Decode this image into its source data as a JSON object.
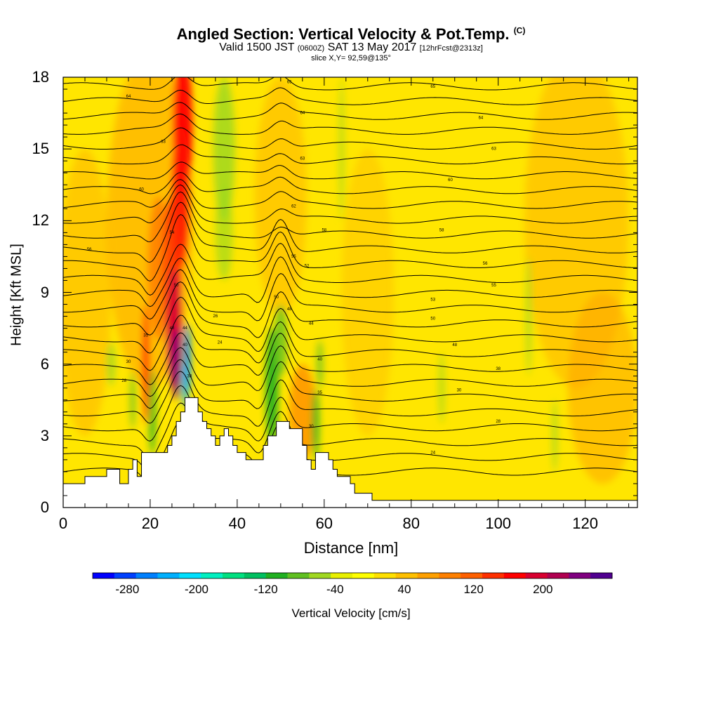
{
  "title": {
    "main": "Angled Section: Vertical Velocity & Pot.Temp.",
    "main_suffix": "(C)",
    "valid_a": "Valid 1500 JST",
    "valid_z": "(0600Z)",
    "valid_b": "SAT 13 May 2017",
    "fcst": "[12hrFcst@2313z]",
    "slice": "slice X,Y= 92,59@135°"
  },
  "chart_data": {
    "type": "heatmap",
    "xlabel": "Distance [nm]",
    "ylabel": "Height [Kft MSL]",
    "xlim": [
      0,
      132
    ],
    "ylim": [
      0,
      18
    ],
    "xticks": [
      0,
      20,
      40,
      60,
      80,
      100,
      120
    ],
    "yticks": [
      0,
      3,
      6,
      9,
      12,
      15,
      18
    ],
    "field_filled": "Vertical Velocity [cm/s]",
    "field_contoured": "Potential Temperature (C)",
    "colorbar": {
      "title": "Vertical Velocity [cm/s]",
      "tick_labels": [
        -280,
        -200,
        -120,
        -40,
        40,
        120,
        200
      ],
      "colors": [
        "#0000ff",
        "#0040ff",
        "#0080ff",
        "#00b0ff",
        "#00e0ff",
        "#00f0c0",
        "#00e080",
        "#00c060",
        "#20b020",
        "#60c020",
        "#a0d820",
        "#e8f000",
        "#ffff00",
        "#ffe000",
        "#ffc000",
        "#ffa000",
        "#ff8000",
        "#ff6000",
        "#ff3000",
        "#ff0000",
        "#d80030",
        "#b00050",
        "#800080",
        "#500090"
      ]
    },
    "terrain": [
      {
        "x": 0,
        "h": 1.0
      },
      {
        "x": 5,
        "h": 1.0
      },
      {
        "x": 5,
        "h": 1.3
      },
      {
        "x": 10,
        "h": 1.3
      },
      {
        "x": 10,
        "h": 1.6
      },
      {
        "x": 13,
        "h": 1.6
      },
      {
        "x": 13,
        "h": 1.0
      },
      {
        "x": 15,
        "h": 1.0
      },
      {
        "x": 15,
        "h": 1.6
      },
      {
        "x": 16,
        "h": 1.6
      },
      {
        "x": 16,
        "h": 2.0
      },
      {
        "x": 17,
        "h": 2.0
      },
      {
        "x": 17,
        "h": 1.3
      },
      {
        "x": 18,
        "h": 1.3
      },
      {
        "x": 18,
        "h": 2.3
      },
      {
        "x": 24,
        "h": 2.3
      },
      {
        "x": 24,
        "h": 2.6
      },
      {
        "x": 25,
        "h": 2.6
      },
      {
        "x": 25,
        "h": 3.0
      },
      {
        "x": 26,
        "h": 3.0
      },
      {
        "x": 26,
        "h": 3.6
      },
      {
        "x": 27,
        "h": 3.6
      },
      {
        "x": 27,
        "h": 4.0
      },
      {
        "x": 28,
        "h": 4.0
      },
      {
        "x": 28,
        "h": 4.6
      },
      {
        "x": 31,
        "h": 4.6
      },
      {
        "x": 31,
        "h": 4.0
      },
      {
        "x": 32,
        "h": 4.0
      },
      {
        "x": 32,
        "h": 3.6
      },
      {
        "x": 33,
        "h": 3.6
      },
      {
        "x": 33,
        "h": 3.3
      },
      {
        "x": 34,
        "h": 3.3
      },
      {
        "x": 34,
        "h": 3.0
      },
      {
        "x": 35,
        "h": 3.0
      },
      {
        "x": 35,
        "h": 2.6
      },
      {
        "x": 36,
        "h": 2.6
      },
      {
        "x": 36,
        "h": 3.0
      },
      {
        "x": 37,
        "h": 3.0
      },
      {
        "x": 37,
        "h": 3.3
      },
      {
        "x": 38,
        "h": 3.3
      },
      {
        "x": 38,
        "h": 3.0
      },
      {
        "x": 39,
        "h": 3.0
      },
      {
        "x": 39,
        "h": 2.6
      },
      {
        "x": 40,
        "h": 2.6
      },
      {
        "x": 40,
        "h": 2.3
      },
      {
        "x": 42,
        "h": 2.3
      },
      {
        "x": 42,
        "h": 2.0
      },
      {
        "x": 46,
        "h": 2.0
      },
      {
        "x": 46,
        "h": 2.6
      },
      {
        "x": 47,
        "h": 2.6
      },
      {
        "x": 47,
        "h": 3.0
      },
      {
        "x": 49,
        "h": 3.0
      },
      {
        "x": 49,
        "h": 3.6
      },
      {
        "x": 52,
        "h": 3.6
      },
      {
        "x": 52,
        "h": 3.3
      },
      {
        "x": 55,
        "h": 3.3
      },
      {
        "x": 55,
        "h": 2.6
      },
      {
        "x": 56,
        "h": 2.6
      },
      {
        "x": 56,
        "h": 2.0
      },
      {
        "x": 57,
        "h": 2.0
      },
      {
        "x": 57,
        "h": 1.6
      },
      {
        "x": 58,
        "h": 1.6
      },
      {
        "x": 58,
        "h": 2.3
      },
      {
        "x": 61,
        "h": 2.3
      },
      {
        "x": 61,
        "h": 2.0
      },
      {
        "x": 62,
        "h": 2.0
      },
      {
        "x": 62,
        "h": 1.6
      },
      {
        "x": 63,
        "h": 1.6
      },
      {
        "x": 63,
        "h": 1.3
      },
      {
        "x": 66,
        "h": 1.3
      },
      {
        "x": 66,
        "h": 1.0
      },
      {
        "x": 67,
        "h": 1.0
      },
      {
        "x": 67,
        "h": 0.6
      },
      {
        "x": 71,
        "h": 0.6
      },
      {
        "x": 71,
        "h": 0.3
      },
      {
        "x": 132,
        "h": 0.3
      }
    ],
    "contour_labels": [
      {
        "x": 15,
        "y": 17.2,
        "t": "64"
      },
      {
        "x": 23,
        "y": 15.3,
        "t": "63"
      },
      {
        "x": 18,
        "y": 13.3,
        "t": "60"
      },
      {
        "x": 6,
        "y": 10.8,
        "t": "56"
      },
      {
        "x": 25,
        "y": 11.5,
        "t": "54"
      },
      {
        "x": 26,
        "y": 9.3,
        "t": "50"
      },
      {
        "x": 25,
        "y": 7.5,
        "t": "48"
      },
      {
        "x": 28,
        "y": 7.5,
        "t": "44"
      },
      {
        "x": 28,
        "y": 6.8,
        "t": "40"
      },
      {
        "x": 29,
        "y": 5.5,
        "t": "38"
      },
      {
        "x": 19,
        "y": 7.2,
        "t": "35"
      },
      {
        "x": 15,
        "y": 6.1,
        "t": "30"
      },
      {
        "x": 14,
        "y": 5.3,
        "t": "28"
      },
      {
        "x": 35,
        "y": 8.0,
        "t": "26"
      },
      {
        "x": 36,
        "y": 6.9,
        "t": "24"
      },
      {
        "x": 52,
        "y": 17.8,
        "t": "65"
      },
      {
        "x": 55,
        "y": 16.5,
        "t": "64"
      },
      {
        "x": 55,
        "y": 14.6,
        "t": "63"
      },
      {
        "x": 53,
        "y": 12.6,
        "t": "62"
      },
      {
        "x": 60,
        "y": 11.6,
        "t": "58"
      },
      {
        "x": 53,
        "y": 10.5,
        "t": "55"
      },
      {
        "x": 56,
        "y": 10.1,
        "t": "52"
      },
      {
        "x": 49,
        "y": 8.8,
        "t": "50"
      },
      {
        "x": 52,
        "y": 8.3,
        "t": "48"
      },
      {
        "x": 57,
        "y": 7.7,
        "t": "44"
      },
      {
        "x": 59,
        "y": 6.2,
        "t": "40"
      },
      {
        "x": 59,
        "y": 4.8,
        "t": "35"
      },
      {
        "x": 57,
        "y": 3.4,
        "t": "30"
      },
      {
        "x": 85,
        "y": 17.6,
        "t": "65"
      },
      {
        "x": 96,
        "y": 16.3,
        "t": "64"
      },
      {
        "x": 99,
        "y": 15.0,
        "t": "63"
      },
      {
        "x": 89,
        "y": 13.7,
        "t": "60"
      },
      {
        "x": 87,
        "y": 11.6,
        "t": "58"
      },
      {
        "x": 97,
        "y": 10.2,
        "t": "56"
      },
      {
        "x": 99,
        "y": 9.3,
        "t": "55"
      },
      {
        "x": 85,
        "y": 8.7,
        "t": "53"
      },
      {
        "x": 85,
        "y": 7.9,
        "t": "50"
      },
      {
        "x": 90,
        "y": 6.8,
        "t": "48"
      },
      {
        "x": 100,
        "y": 5.8,
        "t": "38"
      },
      {
        "x": 91,
        "y": 4.9,
        "t": "30"
      },
      {
        "x": 100,
        "y": 3.6,
        "t": "28"
      },
      {
        "x": 85,
        "y": 2.3,
        "t": "24"
      }
    ]
  }
}
